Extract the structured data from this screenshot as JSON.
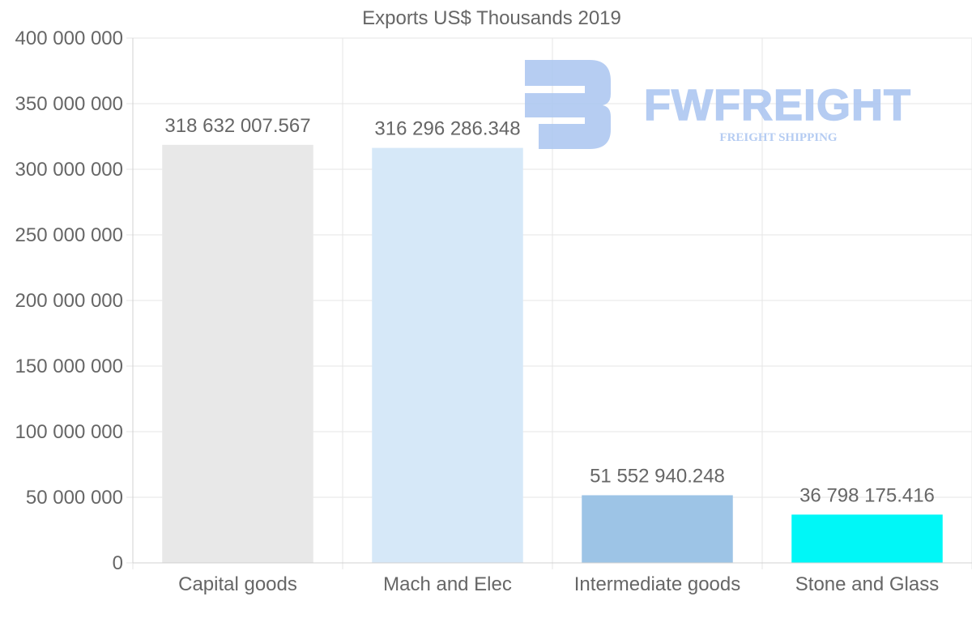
{
  "chart_data": {
    "type": "bar",
    "title": "Exports US$ Thousands 2019",
    "xlabel": "",
    "ylabel": "",
    "categories": [
      "Capital goods",
      "Mach and Elec",
      "Intermediate goods",
      "Stone and Glass"
    ],
    "values": [
      318632007.567,
      316296286.348,
      51552940.248,
      36798175.416
    ],
    "value_labels": [
      "318 632 007.567",
      "316 296 286.348",
      "51 552 940.248",
      "36 798 175.416"
    ],
    "bar_colors": [
      "#e8e8e8",
      "#d6e8f8",
      "#9dc4e6",
      "#00f7f7"
    ],
    "ylim": [
      0,
      400000000
    ],
    "yticks": [
      0,
      50000000,
      100000000,
      150000000,
      200000000,
      250000000,
      300000000,
      350000000,
      400000000
    ],
    "ytick_labels": [
      "0",
      "50 000 000",
      "100 000 000",
      "150 000 000",
      "200 000 000",
      "250 000 000",
      "300 000 000",
      "350 000 000",
      "400 000 000"
    ],
    "grid": true,
    "legend": "none"
  },
  "watermark": {
    "brand": "FWFREIGHT",
    "tagline": "FREIGHT SHIPPING",
    "color": "#a9c4f0"
  },
  "colors": {
    "grid": "#e6e6e6",
    "axis": "#d0d0d0",
    "text": "#666666"
  }
}
